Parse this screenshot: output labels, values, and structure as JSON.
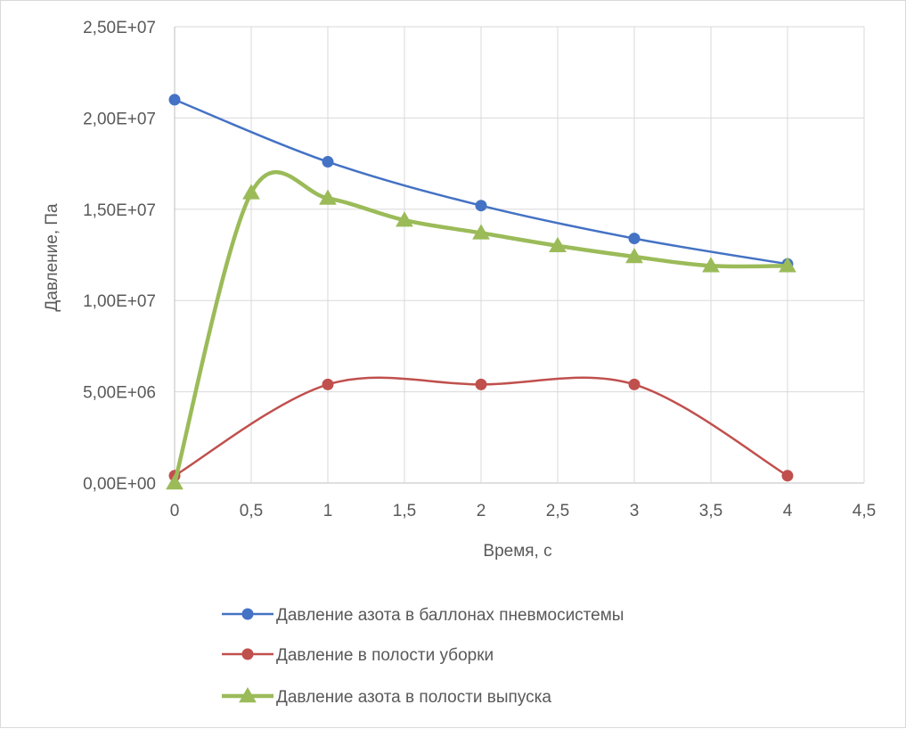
{
  "chart_data": {
    "type": "line",
    "title": "",
    "xlabel": "Время,  с",
    "ylabel": "Давление,  Па",
    "xlim": [
      0,
      4.5
    ],
    "ylim": [
      0,
      25000000
    ],
    "x_ticks": [
      0,
      0.5,
      1,
      1.5,
      2,
      2.5,
      3,
      3.5,
      4,
      4.5
    ],
    "x_tick_labels": [
      "0",
      "0,5",
      "1",
      "1,5",
      "2",
      "2,5",
      "3",
      "3,5",
      "4",
      "4,5"
    ],
    "y_ticks": [
      0,
      5000000,
      10000000,
      15000000,
      20000000,
      25000000
    ],
    "y_tick_labels": [
      "0,00E+00",
      "5,00E+06",
      "1,00E+07",
      "1,50E+07",
      "2,00E+07",
      "2,50E+07"
    ],
    "grid": true,
    "legend_position": "bottom",
    "series": [
      {
        "name": "Давление азота в баллонах пневмосистемы",
        "color": "#4472c4",
        "marker": "circle",
        "x": [
          0,
          1,
          2,
          3,
          4
        ],
        "y": [
          21000000,
          17600000,
          15200000,
          13400000,
          12000000
        ]
      },
      {
        "name": "Давление в полости уборки",
        "color": "#c0504d",
        "marker": "circle",
        "x": [
          0,
          1,
          2,
          3,
          4
        ],
        "y": [
          400000,
          5400000,
          5400000,
          5400000,
          400000
        ]
      },
      {
        "name": "Давление азота в полости выпуска",
        "color": "#9bbb59",
        "marker": "triangle",
        "x": [
          0,
          0.5,
          1,
          1.5,
          2,
          2.5,
          3,
          3.5,
          4
        ],
        "y": [
          0,
          15900000,
          15600000,
          14400000,
          13700000,
          13000000,
          12400000,
          11900000,
          11900000
        ]
      }
    ]
  }
}
